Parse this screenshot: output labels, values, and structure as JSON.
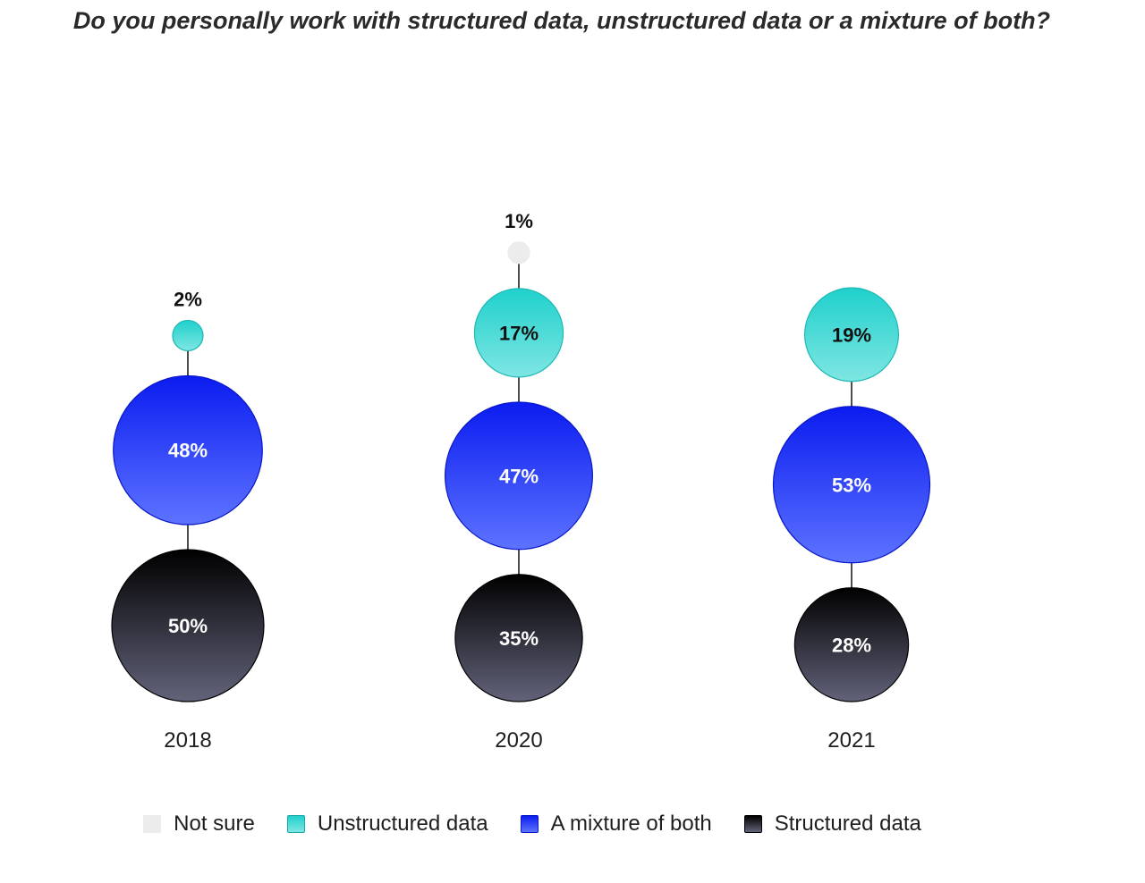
{
  "chart_data": {
    "type": "bubble",
    "title": "Do you personally work with structured data, unstructured data or a mixture of both?",
    "categories": [
      "2018",
      "2020",
      "2021"
    ],
    "series": [
      {
        "name": "Not sure",
        "values": [
          null,
          1,
          null
        ],
        "labels": [
          "",
          "1%",
          ""
        ]
      },
      {
        "name": "Unstructured data",
        "values": [
          2,
          17,
          19
        ],
        "labels": [
          "2%",
          "17%",
          "19%"
        ]
      },
      {
        "name": "A mixture of both",
        "values": [
          48,
          47,
          53
        ],
        "labels": [
          "48%",
          "47%",
          "53%"
        ]
      },
      {
        "name": "Structured data",
        "values": [
          50,
          35,
          28
        ],
        "labels": [
          "50%",
          "35%",
          "28%"
        ]
      }
    ],
    "legend_placement": "bottom",
    "grid": false
  },
  "colors": {
    "not_sure": "#ececec",
    "unstructured_top": "#1fd0cc",
    "unstructured_bottom": "#7fe6e3",
    "mixture_top": "#0b1cf0",
    "mixture_bottom": "#5d73ff",
    "structured_top": "#000000",
    "structured_bottom": "#62637a",
    "line": "#111111"
  },
  "legend": [
    {
      "label": "Not sure",
      "swatch": "not-sure"
    },
    {
      "label": "Unstructured data",
      "swatch": "unstructured"
    },
    {
      "label": "A mixture of both",
      "swatch": "mixture"
    },
    {
      "label": "Structured data",
      "swatch": "structured"
    }
  ]
}
